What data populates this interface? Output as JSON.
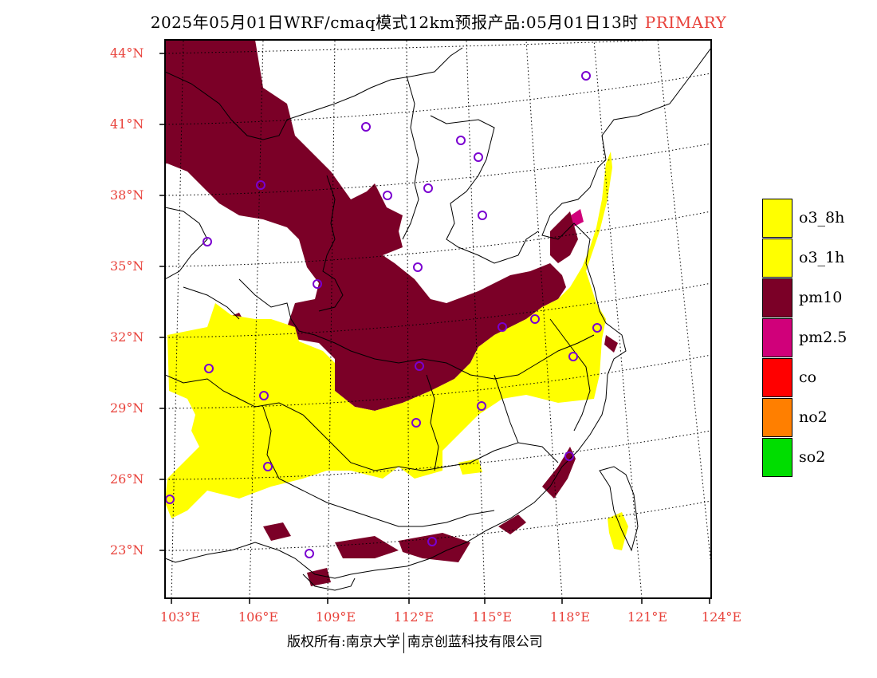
{
  "title": {
    "main": "2025年05月01日WRF/cmaq模式12km预报产品:05月01日13时",
    "tag": "PRIMARY"
  },
  "lat_labels": [
    "44°N",
    "41°N",
    "38°N",
    "35°N",
    "32°N",
    "29°N",
    "26°N",
    "23°N"
  ],
  "lon_labels": [
    "103°E",
    "106°E",
    "109°E",
    "112°E",
    "115°E",
    "118°E",
    "121°E",
    "124°E"
  ],
  "legend": [
    {
      "label": "o3_8h",
      "color": "#ffff00"
    },
    {
      "label": "o3_1h",
      "color": "#ffff00"
    },
    {
      "label": "pm10",
      "color": "#7b0027"
    },
    {
      "label": "pm2.5",
      "color": "#d0007a"
    },
    {
      "label": "co",
      "color": "#ff0000"
    },
    {
      "label": "no2",
      "color": "#ff7f00"
    },
    {
      "label": "so2",
      "color": "#00dd00"
    }
  ],
  "footer": {
    "left": "版权所有:南京大学",
    "right": "南京创蓝科技有限公司"
  }
}
